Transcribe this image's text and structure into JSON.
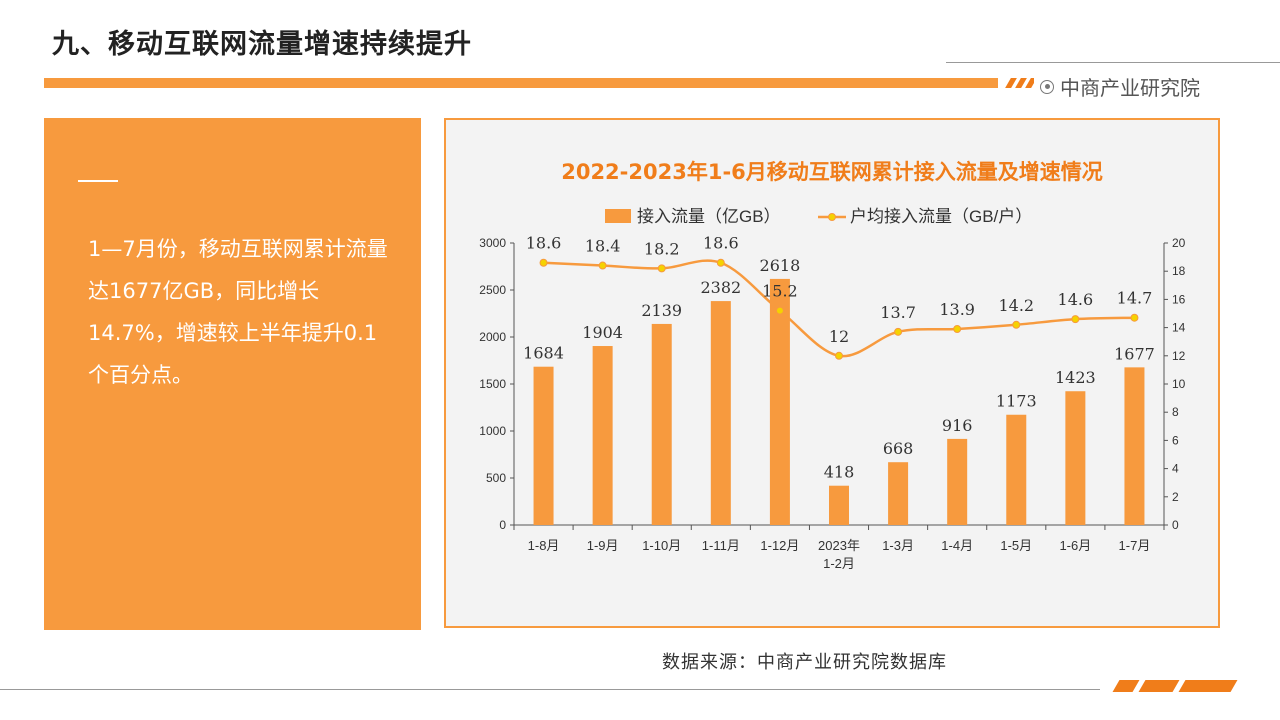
{
  "header": {
    "title": "九、移动互联网流量增速持续提升",
    "logo_text": "中商产业研究院"
  },
  "summary": {
    "text": "1—7月份，移动互联网累计流量达1677亿GB，同比增长14.7%，增速较上半年提升0.1个百分点。"
  },
  "source": "数据来源：中商产业研究院数据库",
  "colors": {
    "accent": "#f79a3e",
    "accent_dark": "#f07d1a",
    "bar": "#f79a3e",
    "line": "#f79a3e",
    "marker": "#f5d200"
  },
  "chart_data": {
    "type": "bar",
    "title": "2022-2023年1-6月移动互联网累计接入流量及增速情况",
    "categories": [
      "1-8月",
      "1-9月",
      "1-10月",
      "1-11月",
      "1-12月",
      "2023年\n1-2月",
      "1-3月",
      "1-4月",
      "1-5月",
      "1-6月",
      "1-7月"
    ],
    "series": [
      {
        "name": "接入流量（亿GB）",
        "type": "bar",
        "axis": "left",
        "values": [
          1684,
          1904,
          2139,
          2382,
          2618,
          418,
          668,
          916,
          1173,
          1423,
          1677
        ],
        "labels": [
          "1684",
          "1904",
          "2139",
          "2382",
          "2618",
          "418",
          "668",
          "916",
          "1173",
          "1423",
          "1677"
        ]
      },
      {
        "name": "户均接入流量（GB/户）",
        "type": "line",
        "axis": "right",
        "values": [
          18.6,
          18.4,
          18.2,
          18.6,
          15.2,
          12,
          13.7,
          13.9,
          14.2,
          14.6,
          14.7
        ],
        "labels": [
          "18.6",
          "18.4",
          "18.2",
          "18.6",
          "15.2",
          "12",
          "13.7",
          "13.9",
          "14.2",
          "14.6",
          "14.7"
        ]
      }
    ],
    "y_left": {
      "min": 0,
      "max": 3000,
      "ticks": [
        "0",
        "500",
        "1000",
        "1500",
        "2000",
        "2500",
        "3000"
      ]
    },
    "y_right": {
      "min": 0,
      "max": 20,
      "ticks": [
        "0",
        "2",
        "4",
        "6",
        "8",
        "10",
        "12",
        "14",
        "16",
        "18",
        "20"
      ]
    },
    "grid": false,
    "legend_position": "top"
  }
}
